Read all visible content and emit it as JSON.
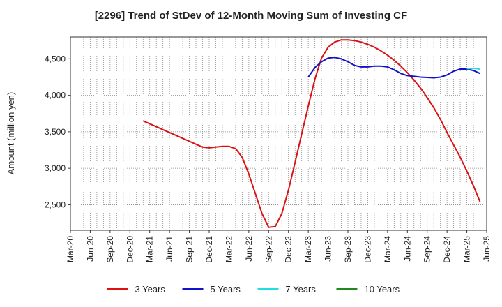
{
  "chart_data": {
    "type": "line",
    "title": "[2296]  Trend of StDev of 12-Month Moving Sum of Investing CF",
    "xlabel": "",
    "ylabel": "Amount (million yen)",
    "ylim": [
      2150,
      4800
    ],
    "yticks": [
      2500,
      3000,
      3500,
      4000,
      4500
    ],
    "ytick_labels": [
      "2,500",
      "3,000",
      "3,500",
      "4,000",
      "4,500"
    ],
    "xlim": [
      "2020-03",
      "2025-06"
    ],
    "xtick_labels": [
      "Mar-20",
      "Jun-20",
      "Sep-20",
      "Dec-20",
      "Mar-21",
      "Jun-21",
      "Sep-21",
      "Dec-21",
      "Mar-22",
      "Jun-22",
      "Sep-22",
      "Dec-22",
      "Mar-23",
      "Jun-23",
      "Sep-23",
      "Dec-23",
      "Mar-24",
      "Jun-24",
      "Sep-24",
      "Dec-24",
      "Mar-25",
      "Jun-25"
    ],
    "grid": true,
    "legend_position": "bottom",
    "series": [
      {
        "name": "3 Years",
        "color": "#dd1111",
        "points": [
          [
            "2021-02",
            3650
          ],
          [
            "2021-03",
            3610
          ],
          [
            "2021-04",
            3570
          ],
          [
            "2021-05",
            3530
          ],
          [
            "2021-06",
            3490
          ],
          [
            "2021-07",
            3450
          ],
          [
            "2021-08",
            3410
          ],
          [
            "2021-09",
            3370
          ],
          [
            "2021-10",
            3330
          ],
          [
            "2021-11",
            3290
          ],
          [
            "2021-12",
            3280
          ],
          [
            "2022-01",
            3290
          ],
          [
            "2022-02",
            3300
          ],
          [
            "2022-03",
            3300
          ],
          [
            "2022-04",
            3270
          ],
          [
            "2022-05",
            3150
          ],
          [
            "2022-06",
            2920
          ],
          [
            "2022-07",
            2650
          ],
          [
            "2022-08",
            2380
          ],
          [
            "2022-09",
            2190
          ],
          [
            "2022-10",
            2200
          ],
          [
            "2022-11",
            2380
          ],
          [
            "2022-12",
            2700
          ],
          [
            "2023-01",
            3080
          ],
          [
            "2023-02",
            3470
          ],
          [
            "2023-03",
            3850
          ],
          [
            "2023-04",
            4220
          ],
          [
            "2023-05",
            4510
          ],
          [
            "2023-06",
            4660
          ],
          [
            "2023-07",
            4730
          ],
          [
            "2023-08",
            4760
          ],
          [
            "2023-09",
            4760
          ],
          [
            "2023-10",
            4750
          ],
          [
            "2023-11",
            4730
          ],
          [
            "2023-12",
            4700
          ],
          [
            "2024-01",
            4660
          ],
          [
            "2024-02",
            4610
          ],
          [
            "2024-03",
            4550
          ],
          [
            "2024-04",
            4480
          ],
          [
            "2024-05",
            4400
          ],
          [
            "2024-06",
            4310
          ],
          [
            "2024-07",
            4210
          ],
          [
            "2024-08",
            4100
          ],
          [
            "2024-09",
            3970
          ],
          [
            "2024-10",
            3830
          ],
          [
            "2024-11",
            3670
          ],
          [
            "2024-12",
            3490
          ],
          [
            "2025-01",
            3320
          ],
          [
            "2025-02",
            3150
          ],
          [
            "2025-03",
            2960
          ],
          [
            "2025-04",
            2760
          ],
          [
            "2025-05",
            2540
          ]
        ]
      },
      {
        "name": "5 Years",
        "color": "#1111cc",
        "points": [
          [
            "2023-03",
            4250
          ],
          [
            "2023-04",
            4380
          ],
          [
            "2023-05",
            4460
          ],
          [
            "2023-06",
            4510
          ],
          [
            "2023-07",
            4520
          ],
          [
            "2023-08",
            4500
          ],
          [
            "2023-09",
            4460
          ],
          [
            "2023-10",
            4410
          ],
          [
            "2023-11",
            4390
          ],
          [
            "2023-12",
            4390
          ],
          [
            "2024-01",
            4400
          ],
          [
            "2024-02",
            4400
          ],
          [
            "2024-03",
            4390
          ],
          [
            "2024-04",
            4350
          ],
          [
            "2024-05",
            4300
          ],
          [
            "2024-06",
            4270
          ],
          [
            "2024-07",
            4260
          ],
          [
            "2024-08",
            4250
          ],
          [
            "2024-09",
            4245
          ],
          [
            "2024-10",
            4240
          ],
          [
            "2024-11",
            4250
          ],
          [
            "2024-12",
            4280
          ],
          [
            "2025-01",
            4330
          ],
          [
            "2025-02",
            4360
          ],
          [
            "2025-03",
            4360
          ],
          [
            "2025-04",
            4340
          ],
          [
            "2025-05",
            4300
          ]
        ]
      },
      {
        "name": "7 Years",
        "color": "#22dddd",
        "points": [
          [
            "2025-03",
            4365
          ],
          [
            "2025-04",
            4370
          ],
          [
            "2025-05",
            4360
          ]
        ]
      },
      {
        "name": "10 Years",
        "color": "#228822",
        "points": []
      }
    ]
  }
}
